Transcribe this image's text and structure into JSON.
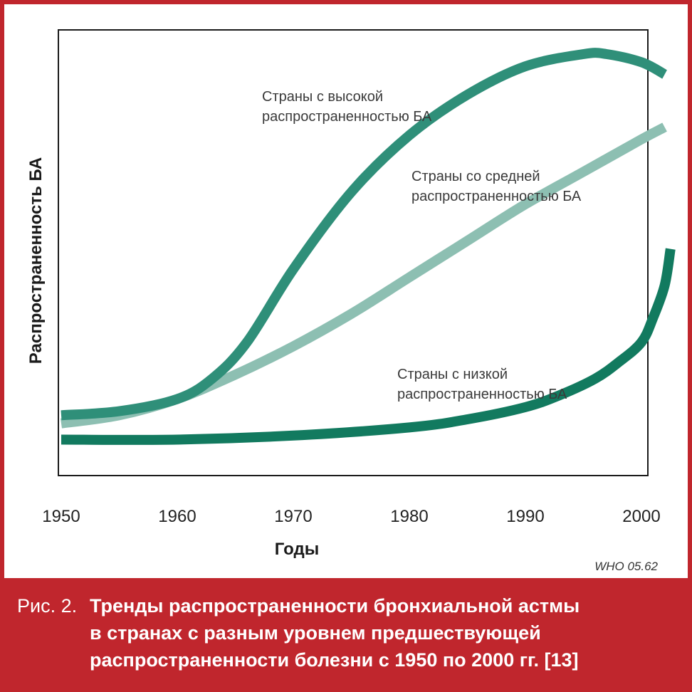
{
  "chart_data": {
    "type": "line",
    "xlabel": "Годы",
    "ylabel": "Распространенность БА",
    "xlim": [
      1950,
      2002
    ],
    "ylim": [
      0,
      100
    ],
    "xticks": [
      1950,
      1960,
      1970,
      1980,
      1990,
      2000
    ],
    "grid": false,
    "credit": "WHO 05.62",
    "series": [
      {
        "name": "Страны с высокой распространенностью БА",
        "label_lines": [
          "Страны с высокой",
          "распространенностью БА"
        ],
        "color": "#2f8f79",
        "x": [
          1950,
          1955,
          1960,
          1963,
          1966,
          1970,
          1975,
          1980,
          1985,
          1990,
          1995,
          1997,
          2000,
          2002
        ],
        "y": [
          11,
          12,
          15,
          20,
          29,
          47,
          66,
          80,
          90,
          97,
          100,
          100,
          98,
          95
        ]
      },
      {
        "name": "Страны со средней распространенностью БА",
        "label_lines": [
          "Страны со средней",
          "распространенностью БА"
        ],
        "color": "#8dbfb2",
        "x": [
          1950,
          1955,
          1960,
          1965,
          1970,
          1975,
          1980,
          1985,
          1990,
          1995,
          2000,
          2002
        ],
        "y": [
          9,
          11,
          15,
          21,
          28,
          36,
          45,
          54,
          63,
          71,
          79,
          82
        ]
      },
      {
        "name": "Страны с низкой распространенностью БА",
        "label_lines": [
          "Страны с низкой",
          "распространенностью БА"
        ],
        "color": "#127a5f",
        "x": [
          1950,
          1960,
          1970,
          1980,
          1985,
          1990,
          1993,
          1996,
          1998,
          2000,
          2001,
          2002,
          2002.5
        ],
        "y": [
          5,
          5,
          6,
          8,
          10,
          13,
          16,
          20,
          24,
          29,
          35,
          43,
          52
        ]
      }
    ]
  },
  "caption": {
    "prefix": "Рис. 2.",
    "lines": [
      "Тренды распространенности бронхиальной астмы",
      "в странах с разным уровнем предшествующей",
      "распространенности болезни с 1950 по 2000 гг. [13]"
    ]
  }
}
